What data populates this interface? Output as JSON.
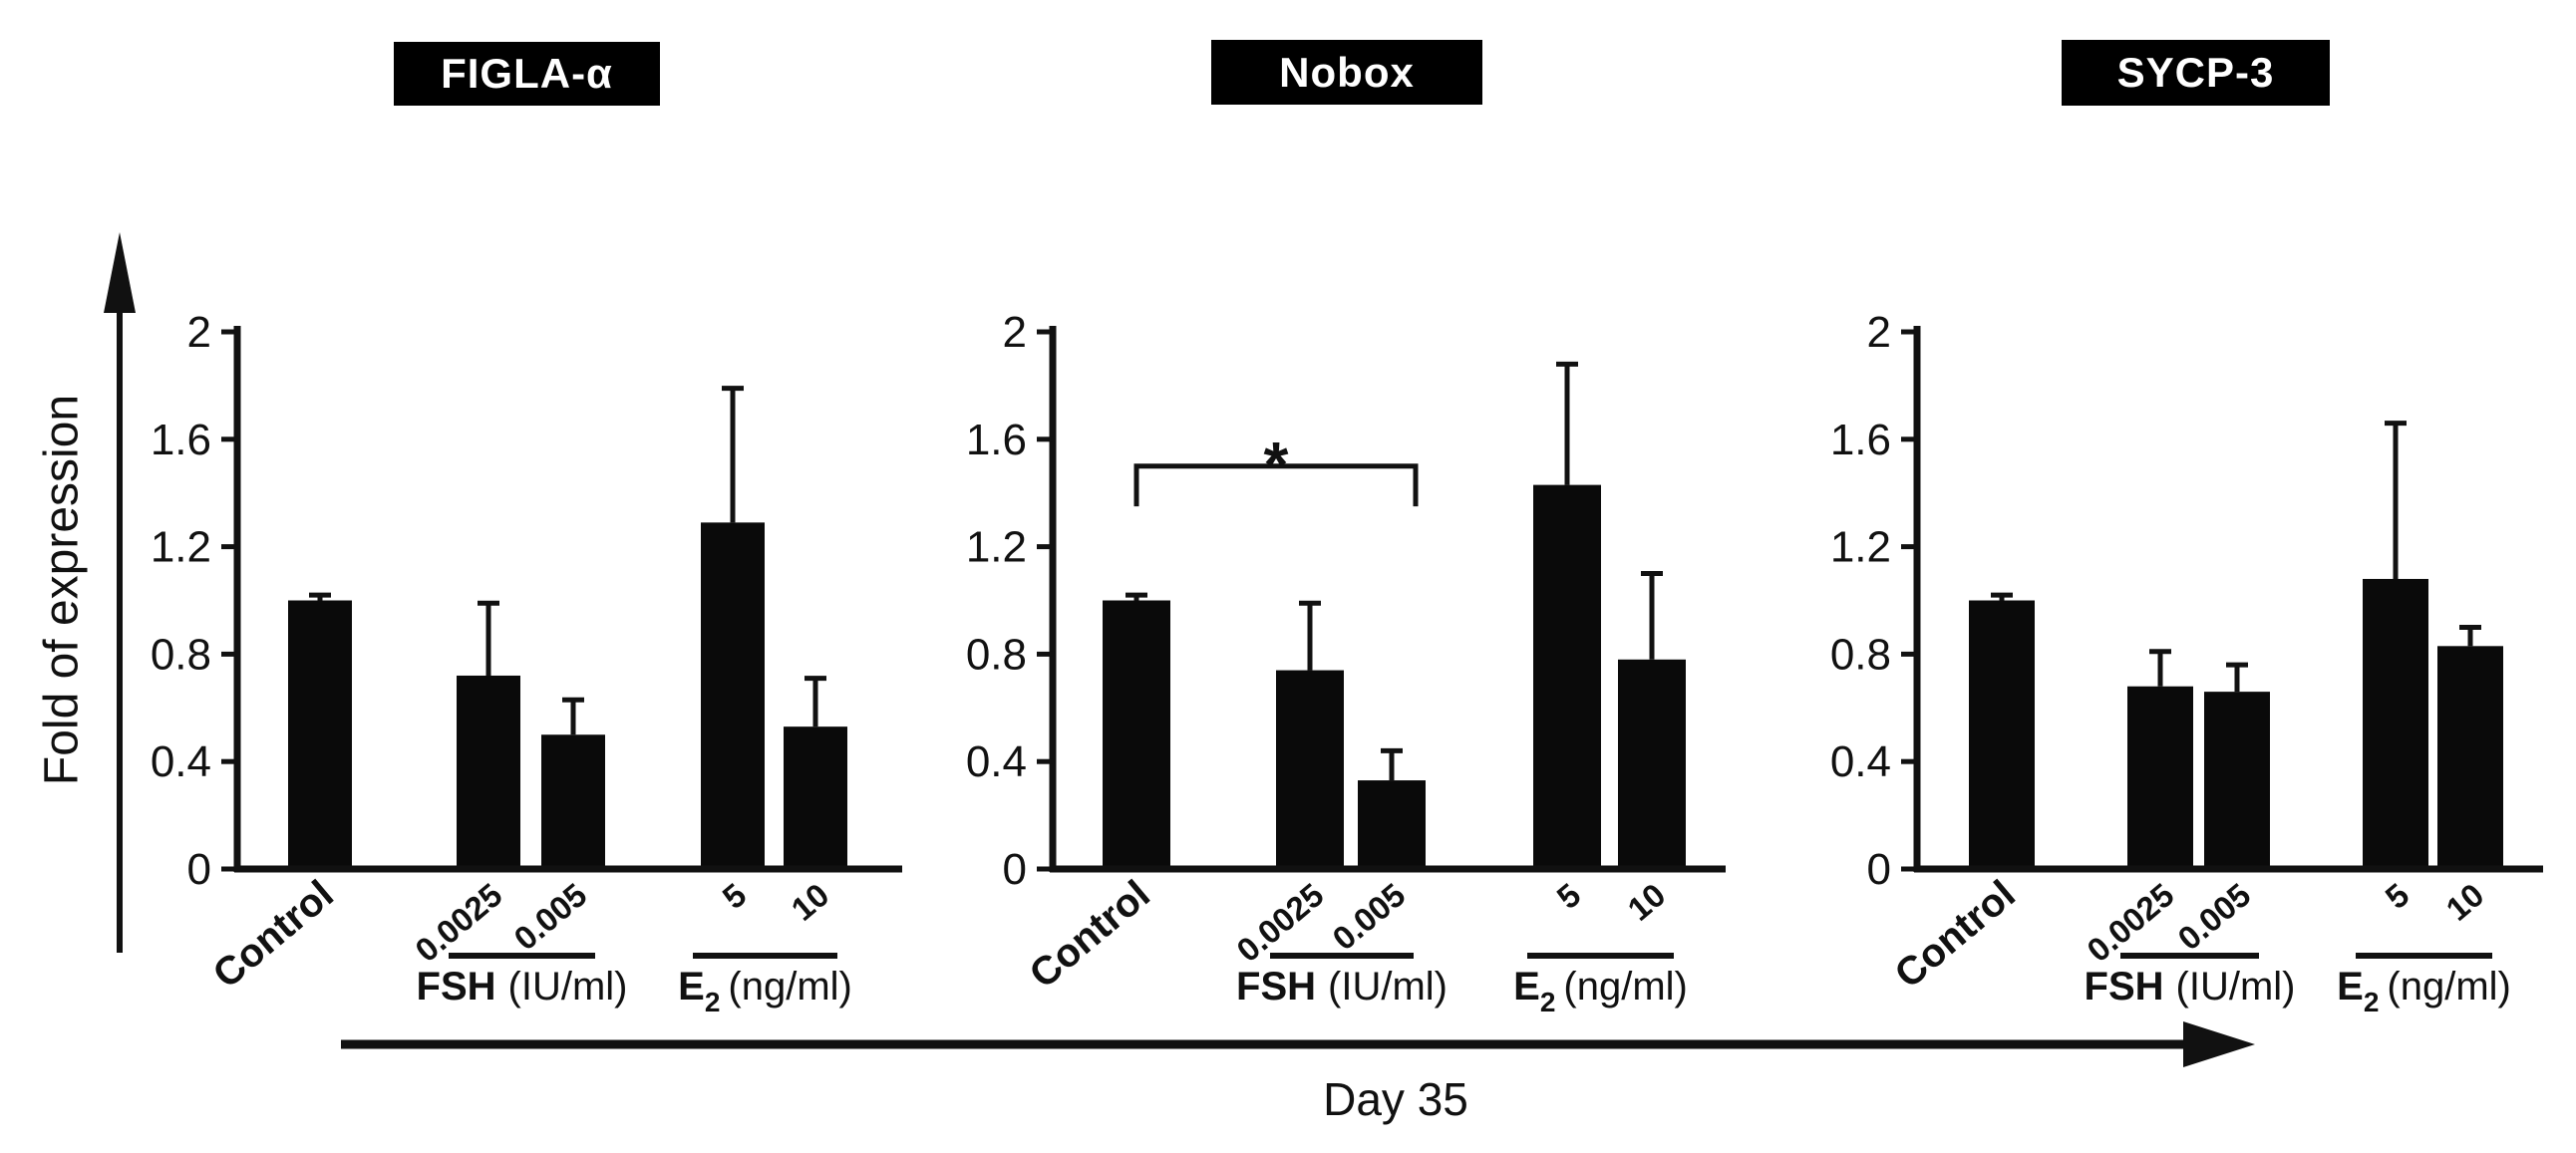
{
  "figure": {
    "y_axis_label": "Fold of expression",
    "timeline_label": "Day 35",
    "colors": {
      "bar": "#0a0a0a",
      "axis": "#111111",
      "background": "#ffffff",
      "title_bg": "#000000",
      "title_fg": "#ffffff"
    }
  },
  "chart_data": [
    {
      "type": "bar",
      "title": "FIGLA-α",
      "ylabel": "Fold of expression",
      "ylim": [
        0,
        2
      ],
      "yticks": [
        0,
        0.4,
        0.8,
        1.2,
        1.6,
        2
      ],
      "grid": false,
      "legend": "none",
      "categories": [
        "Control",
        "0.0025",
        "0.005",
        "5",
        "10"
      ],
      "values": [
        1.0,
        0.72,
        0.5,
        1.29,
        0.53
      ],
      "errors_plus": [
        0.02,
        0.27,
        0.13,
        0.5,
        0.18
      ],
      "groups": [
        {
          "name": "FSH",
          "sub": "",
          "unit": "(IU/ml)",
          "members": [
            "0.0025",
            "0.005"
          ]
        },
        {
          "name": "E",
          "sub": "2",
          "unit": "(ng/ml)",
          "members": [
            "5",
            "10"
          ]
        }
      ]
    },
    {
      "type": "bar",
      "title": "Nobox",
      "ylabel": "Fold of expression",
      "ylim": [
        0,
        2
      ],
      "yticks": [
        0,
        0.4,
        0.8,
        1.2,
        1.6,
        2
      ],
      "grid": false,
      "legend": "none",
      "categories": [
        "Control",
        "0.0025",
        "0.005",
        "5",
        "10"
      ],
      "values": [
        1.0,
        0.74,
        0.33,
        1.43,
        0.78
      ],
      "errors_plus": [
        0.02,
        0.25,
        0.11,
        0.45,
        0.32
      ],
      "groups": [
        {
          "name": "FSH",
          "sub": "",
          "unit": "(IU/ml)",
          "members": [
            "0.0025",
            "0.005"
          ]
        },
        {
          "name": "E",
          "sub": "2",
          "unit": "(ng/ml)",
          "members": [
            "5",
            "10"
          ]
        }
      ],
      "significance": {
        "between": [
          "Control",
          "0.005"
        ],
        "label": "*",
        "height": 1.5,
        "leg": 0.15
      }
    },
    {
      "type": "bar",
      "title": "SYCP-3",
      "ylabel": "Fold of expression",
      "ylim": [
        0,
        2
      ],
      "yticks": [
        0,
        0.4,
        0.8,
        1.2,
        1.6,
        2
      ],
      "grid": false,
      "legend": "none",
      "categories": [
        "Control",
        "0.0025",
        "0.005",
        "5",
        "10"
      ],
      "values": [
        1.0,
        0.68,
        0.66,
        1.08,
        0.83
      ],
      "errors_plus": [
        0.02,
        0.13,
        0.1,
        0.58,
        0.07
      ],
      "groups": [
        {
          "name": "FSH",
          "sub": "",
          "unit": "(IU/ml)",
          "members": [
            "0.0025",
            "0.005"
          ]
        },
        {
          "name": "E",
          "sub": "2",
          "unit": "(ng/ml)",
          "members": [
            "5",
            "10"
          ]
        }
      ]
    }
  ]
}
